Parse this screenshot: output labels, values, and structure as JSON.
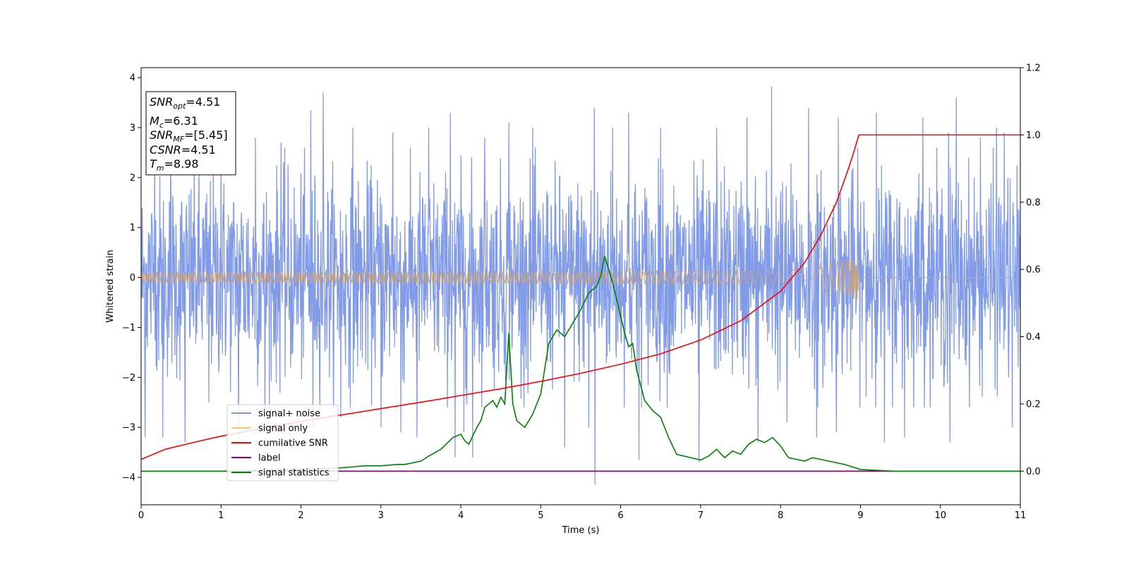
{
  "chart_data": {
    "type": "line",
    "xlabel": "Time (s)",
    "ylabel": "Whitened strain",
    "xlim": [
      0,
      11
    ],
    "ylim_left": [
      -4.55,
      4.2
    ],
    "ylim_right": [
      -0.1,
      1.2
    ],
    "x_ticks": [
      "0",
      "1",
      "2",
      "3",
      "4",
      "5",
      "6",
      "7",
      "8",
      "9",
      "10",
      "11"
    ],
    "y_ticks_left": [
      "4",
      "3",
      "2",
      "1",
      "0",
      "−1",
      "−2",
      "−3",
      "−4"
    ],
    "y_ticks_right": [
      "1.2",
      "1.0",
      "0.8",
      "0.6",
      "0.4",
      "0.2",
      "0.0"
    ],
    "grid": false,
    "legend_position": "lower-left",
    "legend": [
      {
        "label": "signal+ noise",
        "color": "#7b96e8"
      },
      {
        "label": "signal only",
        "color": "#f7c872"
      },
      {
        "label": "cumilative SNR",
        "color": "#ff0000"
      },
      {
        "label": "label",
        "color": "#800080"
      },
      {
        "label": "signal statistics",
        "color": "#008000"
      }
    ],
    "info_box": [
      {
        "base": "SNR",
        "sub": "opt",
        "value": "=4.51"
      },
      {
        "base": "M",
        "sub": "c",
        "value": "=6.31"
      },
      {
        "base": "SNR",
        "sub": "MF",
        "value": "=[5.45]"
      },
      {
        "base": "CSNR",
        "sub": "",
        "value": "=4.51"
      },
      {
        "base": "T",
        "sub": "m",
        "value": "=8.98"
      }
    ],
    "series": [
      {
        "name": "signal+ noise",
        "axis": "left",
        "color": "#7b96e8",
        "noise_sigma": 1.0,
        "peaks": [
          [
            0.05,
            -3.2
          ],
          [
            0.17,
            2.8
          ],
          [
            0.27,
            -3.2
          ],
          [
            0.37,
            2.7
          ],
          [
            0.55,
            -3.3
          ],
          [
            0.85,
            -2.5
          ],
          [
            1.0,
            2.6
          ],
          [
            1.22,
            -3.3
          ],
          [
            1.43,
            2.8
          ],
          [
            1.55,
            -3.0
          ],
          [
            1.75,
            2.7
          ],
          [
            2.12,
            3.35
          ],
          [
            2.15,
            -3.0
          ],
          [
            2.28,
            3.7
          ],
          [
            2.5,
            -2.8
          ],
          [
            2.65,
            3.0
          ],
          [
            3.0,
            -3.0
          ],
          [
            3.15,
            2.9
          ],
          [
            3.25,
            -3.1
          ],
          [
            3.45,
            -3.2
          ],
          [
            3.6,
            3.0
          ],
          [
            3.87,
            3.3
          ],
          [
            3.93,
            -3.6
          ],
          [
            4.04,
            -3.1
          ],
          [
            4.15,
            -3.6
          ],
          [
            4.3,
            2.8
          ],
          [
            4.6,
            3.1
          ],
          [
            4.9,
            3.0
          ],
          [
            5.3,
            -3.4
          ],
          [
            5.6,
            -3.0
          ],
          [
            5.67,
            3.4
          ],
          [
            5.68,
            -4.15
          ],
          [
            5.9,
            3.0
          ],
          [
            6.1,
            3.3
          ],
          [
            6.23,
            -3.65
          ],
          [
            6.5,
            3.0
          ],
          [
            6.98,
            -3.7
          ],
          [
            7.2,
            3.0
          ],
          [
            7.58,
            3.2
          ],
          [
            7.72,
            -3.3
          ],
          [
            7.89,
            3.82
          ],
          [
            8.08,
            -2.9
          ],
          [
            8.35,
            3.4
          ],
          [
            8.45,
            -3.2
          ],
          [
            8.7,
            -3.1
          ],
          [
            8.72,
            3.2
          ],
          [
            9.2,
            3.3
          ],
          [
            9.3,
            -3.3
          ],
          [
            9.55,
            -3.2
          ],
          [
            9.78,
            3.2
          ],
          [
            10.1,
            2.9
          ],
          [
            10.12,
            -3.3
          ],
          [
            10.2,
            3.6
          ],
          [
            10.5,
            2.8
          ],
          [
            10.7,
            3.0
          ],
          [
            10.8,
            2.9
          ],
          [
            10.9,
            -3.0
          ]
        ]
      },
      {
        "name": "signal only",
        "axis": "left",
        "color": "#f7c872",
        "chirp": {
          "t_merge": 8.98,
          "amp_min": 0.03,
          "amp_peak": 0.5
        }
      },
      {
        "name": "cumilative SNR",
        "axis": "right",
        "color": "#ff0000",
        "x": [
          0,
          0.3,
          0.7,
          1.0,
          1.5,
          2.0,
          2.5,
          3.0,
          3.5,
          4.0,
          4.5,
          5.0,
          5.5,
          6.0,
          6.5,
          7.0,
          7.5,
          8.0,
          8.3,
          8.5,
          8.7,
          8.85,
          8.93,
          8.98,
          9.0,
          11.0
        ],
        "y": [
          0.035,
          0.065,
          0.088,
          0.104,
          0.127,
          0.148,
          0.167,
          0.186,
          0.205,
          0.225,
          0.245,
          0.267,
          0.291,
          0.318,
          0.349,
          0.39,
          0.447,
          0.535,
          0.62,
          0.7,
          0.8,
          0.9,
          0.96,
          1.0,
          1.0,
          1.0
        ]
      },
      {
        "name": "label",
        "axis": "right",
        "color": "#800080",
        "x": [
          0,
          11
        ],
        "y": [
          0,
          0
        ]
      },
      {
        "name": "signal statistics",
        "axis": "right",
        "color": "#008000",
        "x": [
          0,
          1.0,
          2.0,
          2.5,
          2.8,
          3.0,
          3.2,
          3.3,
          3.5,
          3.6,
          3.75,
          3.9,
          4.0,
          4.05,
          4.1,
          4.2,
          4.25,
          4.3,
          4.4,
          4.45,
          4.5,
          4.55,
          4.6,
          4.65,
          4.7,
          4.8,
          4.9,
          5.0,
          5.1,
          5.2,
          5.3,
          5.4,
          5.5,
          5.6,
          5.7,
          5.75,
          5.8,
          5.9,
          6.0,
          6.05,
          6.1,
          6.15,
          6.2,
          6.3,
          6.4,
          6.5,
          6.6,
          6.7,
          7.0,
          7.1,
          7.2,
          7.3,
          7.4,
          7.5,
          7.6,
          7.7,
          7.8,
          7.9,
          8.0,
          8.1,
          8.2,
          8.3,
          8.4,
          8.6,
          8.8,
          9.0,
          9.4,
          9.7,
          10.0,
          11.0
        ],
        "y": [
          0.0,
          0.0,
          0.005,
          0.01,
          0.016,
          0.016,
          0.02,
          0.02,
          0.03,
          0.045,
          0.065,
          0.1,
          0.11,
          0.09,
          0.08,
          0.13,
          0.15,
          0.19,
          0.21,
          0.19,
          0.22,
          0.2,
          0.41,
          0.2,
          0.15,
          0.13,
          0.17,
          0.23,
          0.38,
          0.42,
          0.4,
          0.44,
          0.48,
          0.53,
          0.55,
          0.58,
          0.64,
          0.56,
          0.46,
          0.41,
          0.37,
          0.38,
          0.3,
          0.21,
          0.18,
          0.16,
          0.1,
          0.05,
          0.033,
          0.045,
          0.065,
          0.04,
          0.06,
          0.05,
          0.08,
          0.095,
          0.085,
          0.1,
          0.075,
          0.04,
          0.035,
          0.03,
          0.04,
          0.03,
          0.02,
          0.005,
          0.0,
          0.0,
          0.0,
          0.0
        ]
      }
    ]
  }
}
